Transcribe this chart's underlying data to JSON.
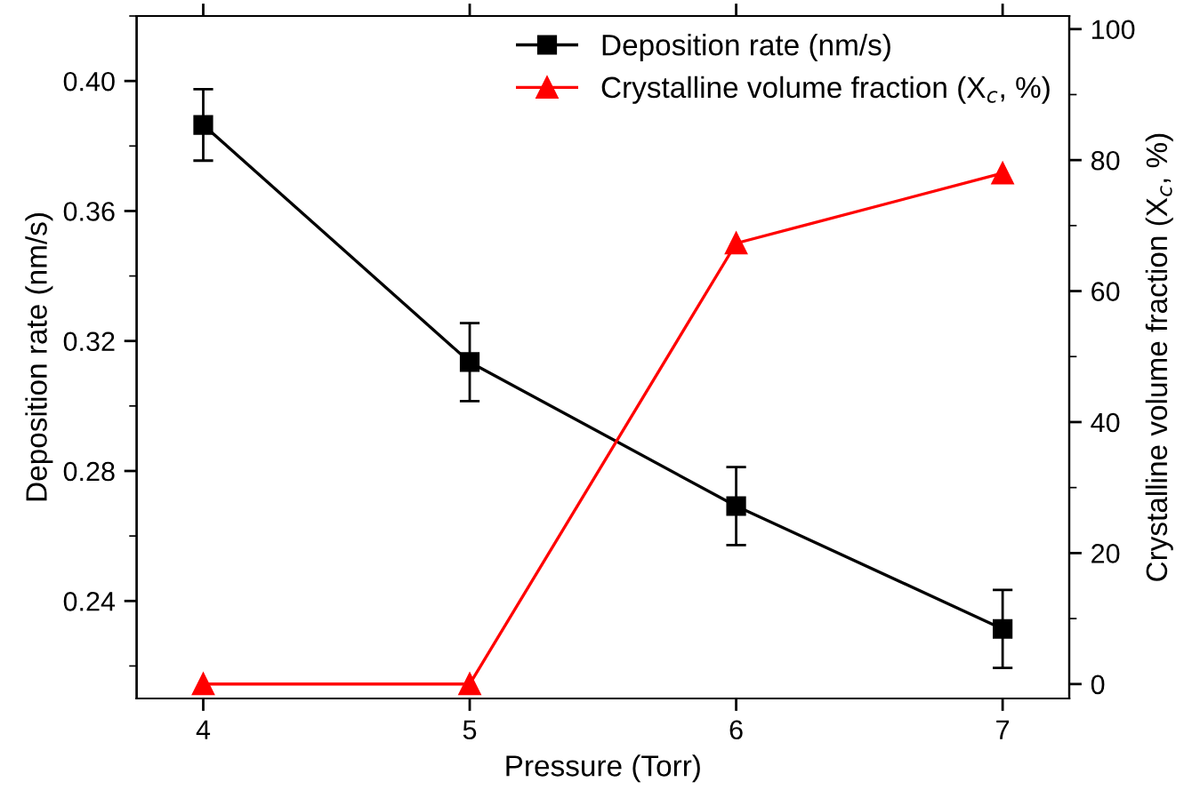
{
  "chart_data": {
    "type": "line",
    "xlabel": "Pressure (Torr)",
    "ylabel": "Deposition rate (nm/s)",
    "y2label": "Crystalline volume fraction (X$_{c}$, %)",
    "x": [
      4,
      5,
      6,
      7
    ],
    "xlim": [
      3.75,
      7.25
    ],
    "xticks": [
      4,
      5,
      6,
      7
    ],
    "ylim": [
      0.21,
      0.42
    ],
    "yticks": [
      {
        "value": 0.24,
        "label": "0.24"
      },
      {
        "value": 0.28,
        "label": "0.28"
      },
      {
        "value": 0.32,
        "label": "0.32"
      },
      {
        "value": 0.36,
        "label": "0.36"
      },
      {
        "value": 0.4,
        "label": "0.40"
      }
    ],
    "y2lim": [
      -2.2,
      102
    ],
    "y2ticks": [
      0,
      20,
      40,
      60,
      80,
      100
    ],
    "series": [
      {
        "name": "Deposition rate (nm/s)",
        "color": "#000000",
        "marker": "square",
        "values": [
          0.3865,
          0.3135,
          0.2692,
          0.2314
        ],
        "errors": [
          0.011,
          0.012,
          0.012,
          0.012
        ]
      },
      {
        "name": "Crystalline volume fraction (X$_{c}$, %)",
        "color": "#ff0000",
        "marker": "triangle",
        "axis": "y2",
        "values": [
          0,
          0,
          67.3,
          78.0
        ]
      }
    ],
    "grid": false,
    "legend": "top right"
  }
}
